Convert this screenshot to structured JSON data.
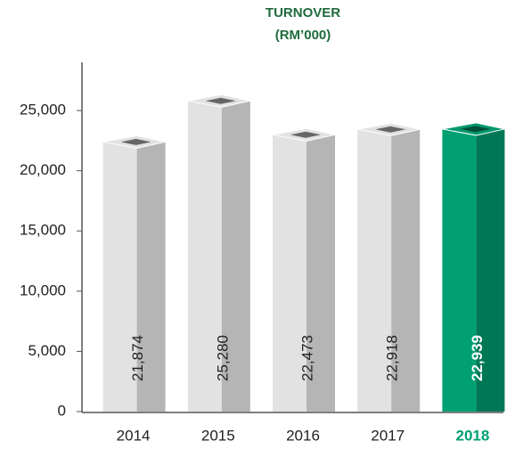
{
  "chart_data": {
    "type": "bar3d",
    "title": "TURNOVER",
    "subtitle": "(RM’000)",
    "categories": [
      "2014",
      "2015",
      "2016",
      "2017",
      "2018"
    ],
    "values": [
      21874,
      25280,
      22473,
      22918,
      22939
    ],
    "value_labels": [
      "21,874",
      "25,280",
      "22,473",
      "22,918",
      "22,939"
    ],
    "colors": [
      "#e2e2e2",
      "#e2e2e2",
      "#e2e2e2",
      "#e2e2e2",
      "#00a072"
    ],
    "highlight_color": "#00a072",
    "ylim": [
      0,
      29000
    ],
    "yticks": [
      0,
      {
        "value": 5000,
        "label": "5,000"
      },
      {
        "value": 10000,
        "label": "10,000"
      },
      {
        "value": 15000,
        "label": "15,000"
      },
      {
        "value": 20000,
        "label": "20,000"
      },
      {
        "value": 25000,
        "label": "25,000"
      }
    ]
  }
}
